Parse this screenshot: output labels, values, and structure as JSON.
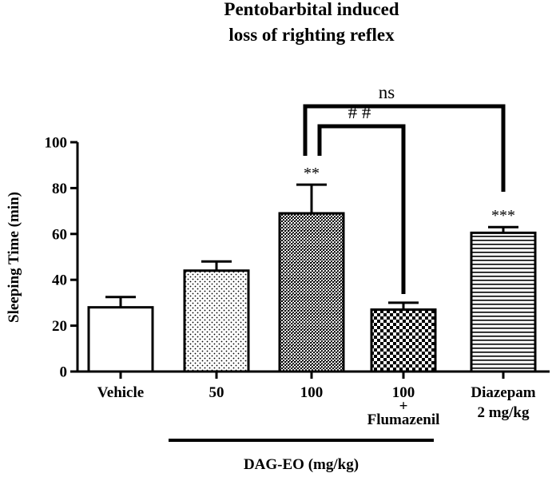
{
  "chart_data": {
    "type": "bar",
    "title": [
      "Pentobarbital induced",
      "loss of righting reflex"
    ],
    "xlabel": "DAG-EO (mg/kg)",
    "ylabel": "Sleeping Time (min)",
    "ylim": [
      0,
      100
    ],
    "yticks": [
      "0",
      "20",
      "40",
      "60",
      "80",
      "100"
    ],
    "categories": [
      {
        "lines": [
          "Vehicle"
        ],
        "value": 28,
        "error": 4.5,
        "pattern": "white",
        "sig": ""
      },
      {
        "lines": [
          "50"
        ],
        "value": 44,
        "error": 4,
        "pattern": "dots",
        "sig": ""
      },
      {
        "lines": [
          "100"
        ],
        "value": 69,
        "error": 12.5,
        "pattern": "dense-dots",
        "sig": "**"
      },
      {
        "lines": [
          "100",
          "+",
          "Flumazenil"
        ],
        "value": 27,
        "error": 3,
        "pattern": "checker",
        "sig": ""
      },
      {
        "lines": [
          "Diazepam",
          "2 mg/kg"
        ],
        "value": 60.5,
        "error": 2.5,
        "pattern": "hlines",
        "sig": "***"
      }
    ],
    "comparisons": [
      {
        "from": 2,
        "to": 4,
        "label": "ns"
      },
      {
        "from": 2,
        "to": 3,
        "label": "# #"
      }
    ],
    "grid": false,
    "legend": "none"
  },
  "colors": {
    "ink": "#000000",
    "background": "#ffffff"
  }
}
